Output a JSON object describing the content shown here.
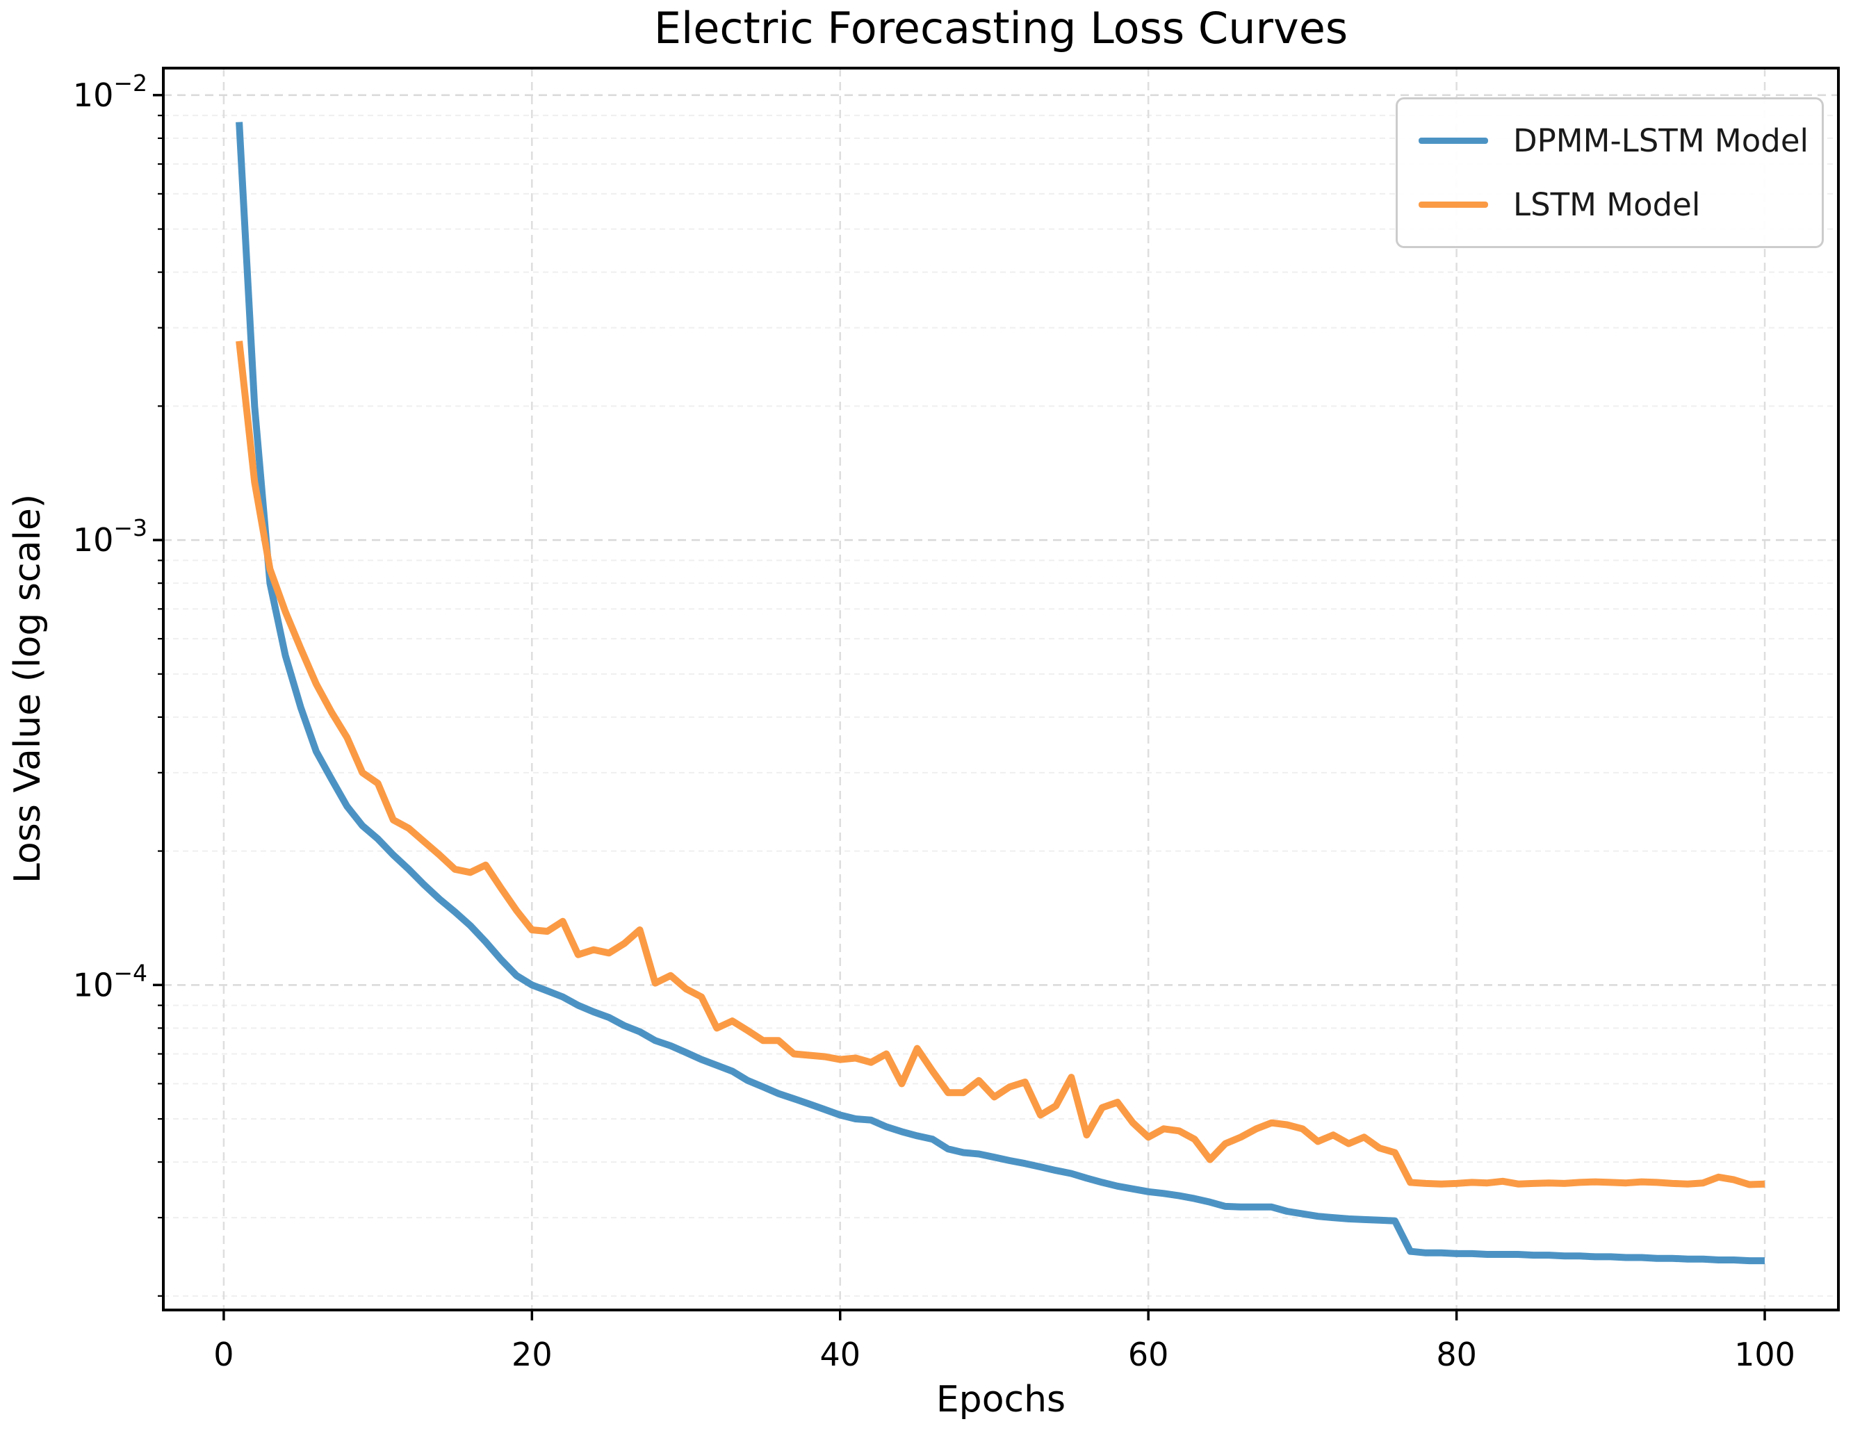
{
  "figure": {
    "background_color": "#ffffff",
    "title": "Electric Forecasting Loss Curves",
    "xlabel": "Epochs",
    "ylabel": "Loss Value (log scale)"
  },
  "legend": {
    "position": "upper right",
    "items": [
      {
        "label": "DPMM-LSTM Model",
        "color": "#4c93c4"
      },
      {
        "label": "LSTM Model",
        "color": "#fb9a44"
      }
    ]
  },
  "chart_data": {
    "type": "line",
    "title": "Electric Forecasting Loss Curves",
    "xlabel": "Epochs",
    "ylabel": "Loss Value (log scale)",
    "yscale": "log",
    "grid": true,
    "legend_position": "upper right",
    "xlim": [
      -3.92,
      104.78
    ],
    "ylim": [
      1.86e-05,
      0.0115
    ],
    "x_ticks": [
      0,
      20,
      40,
      60,
      80,
      100
    ],
    "y_tick_exponents": [
      -2,
      -3,
      -4
    ],
    "x_start": 1,
    "x_step": 1,
    "series": [
      {
        "name": "DPMM-LSTM Model",
        "color": "#4c93c4",
        "values": [
          0.0087,
          0.002,
          0.0008,
          0.00055,
          0.00042,
          0.000335,
          0.00029,
          0.000252,
          0.000228,
          0.000213,
          0.000196,
          0.000182,
          0.000168,
          0.000156,
          0.000146,
          0.000136,
          0.000125,
          0.000114,
          0.000105,
          0.0001,
          9.7e-05,
          9.4e-05,
          9e-05,
          8.7e-05,
          8.45e-05,
          8.1e-05,
          7.85e-05,
          7.5e-05,
          7.3e-05,
          7.05e-05,
          6.8e-05,
          6.6e-05,
          6.4e-05,
          6.1e-05,
          5.9e-05,
          5.7e-05,
          5.55e-05,
          5.4e-05,
          5.25e-05,
          5.1e-05,
          5e-05,
          4.97e-05,
          4.8e-05,
          4.68e-05,
          4.58e-05,
          4.5e-05,
          4.28e-05,
          4.2e-05,
          4.17e-05,
          4.1e-05,
          4.03e-05,
          3.97e-05,
          3.9e-05,
          3.83e-05,
          3.77e-05,
          3.68e-05,
          3.6e-05,
          3.53e-05,
          3.48e-05,
          3.43e-05,
          3.4e-05,
          3.36e-05,
          3.31e-05,
          3.25e-05,
          3.18e-05,
          3.17e-05,
          3.17e-05,
          3.17e-05,
          3.1e-05,
          3.06e-05,
          3.02e-05,
          3e-05,
          2.98e-05,
          2.97e-05,
          2.96e-05,
          2.95e-05,
          2.52e-05,
          2.5e-05,
          2.5e-05,
          2.49e-05,
          2.49e-05,
          2.48e-05,
          2.48e-05,
          2.48e-05,
          2.47e-05,
          2.47e-05,
          2.46e-05,
          2.46e-05,
          2.45e-05,
          2.45e-05,
          2.44e-05,
          2.44e-05,
          2.43e-05,
          2.43e-05,
          2.42e-05,
          2.42e-05,
          2.41e-05,
          2.41e-05,
          2.4e-05,
          2.4e-05
        ]
      },
      {
        "name": "LSTM Model",
        "color": "#fb9a44",
        "values": [
          0.0028,
          0.00135,
          0.00086,
          0.00069,
          0.00057,
          0.000475,
          0.00041,
          0.00036,
          0.0003,
          0.000284,
          0.000235,
          0.000225,
          0.00021,
          0.000196,
          0.000182,
          0.000179,
          0.000186,
          0.000165,
          0.000147,
          0.000133,
          0.000132,
          0.000139,
          0.000117,
          0.00012,
          0.000118,
          0.000124,
          0.000133,
          0.000101,
          0.000105,
          9.8e-05,
          9.4e-05,
          8e-05,
          8.3e-05,
          7.9e-05,
          7.5e-05,
          7.5e-05,
          7e-05,
          6.95e-05,
          6.9e-05,
          6.8e-05,
          6.85e-05,
          6.7e-05,
          7e-05,
          6e-05,
          7.2e-05,
          6.4e-05,
          5.73e-05,
          5.73e-05,
          6.1e-05,
          5.6e-05,
          5.9e-05,
          6.05e-05,
          5.1e-05,
          5.35e-05,
          6.2e-05,
          4.6e-05,
          5.3e-05,
          5.45e-05,
          4.9e-05,
          4.55e-05,
          4.75e-05,
          4.7e-05,
          4.5e-05,
          4.05e-05,
          4.4e-05,
          4.55e-05,
          4.75e-05,
          4.9e-05,
          4.85e-05,
          4.75e-05,
          4.45e-05,
          4.6e-05,
          4.4e-05,
          4.55e-05,
          4.3e-05,
          4.2e-05,
          3.6e-05,
          3.58e-05,
          3.57e-05,
          3.58e-05,
          3.6e-05,
          3.59e-05,
          3.62e-05,
          3.57e-05,
          3.58e-05,
          3.59e-05,
          3.58e-05,
          3.6e-05,
          3.61e-05,
          3.6e-05,
          3.59e-05,
          3.61e-05,
          3.6e-05,
          3.58e-05,
          3.57e-05,
          3.59e-05,
          3.7e-05,
          3.65e-05,
          3.56e-05,
          3.57e-05
        ]
      }
    ]
  }
}
